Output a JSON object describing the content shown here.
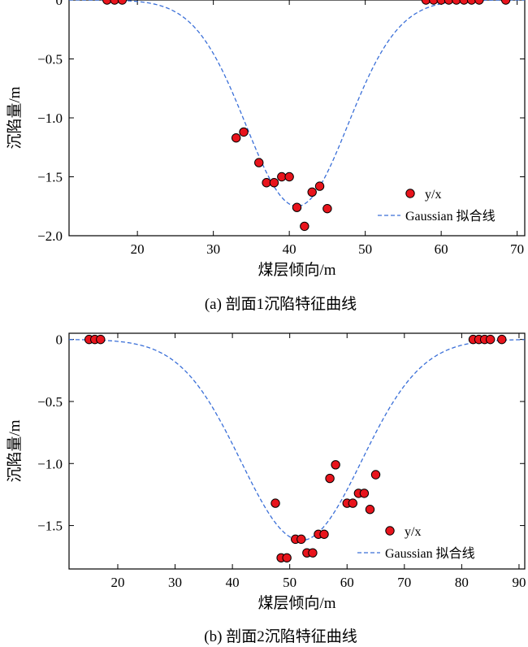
{
  "chart_data": [
    {
      "type": "scatter",
      "caption": "(a) 剖面1沉陷特征曲线",
      "xlabel": "煤层倾向/m",
      "ylabel": "沉陷量/m",
      "xlim": [
        11,
        71
      ],
      "ylim": [
        -2.0,
        0
      ],
      "xticks": [
        20,
        30,
        40,
        50,
        60,
        70
      ],
      "yticks": [
        0,
        -0.5,
        -1.0,
        -1.5,
        -2.0
      ],
      "ytick_labels": [
        "0",
        "−0.5",
        "−1.0",
        "−1.5",
        "−2.0"
      ],
      "legend_position": "bottom-right",
      "colors": {
        "points": "#e8141c",
        "fit": "#3a6fd8"
      },
      "series": [
        {
          "name": "y/x",
          "kind": "points",
          "x": [
            16,
            17,
            18,
            33,
            34,
            36,
            37,
            38,
            39,
            40,
            41,
            42,
            43,
            44,
            45,
            58,
            59,
            60,
            61,
            62,
            63,
            64,
            65,
            68.5
          ],
          "y": [
            0,
            0,
            0,
            -1.17,
            -1.12,
            -1.38,
            -1.55,
            -1.55,
            -1.5,
            -1.5,
            -1.76,
            -1.92,
            -1.63,
            -1.58,
            -1.77,
            0,
            0,
            0,
            0,
            0,
            0,
            0,
            0,
            0
          ]
        },
        {
          "name": "Gaussian 拟合线",
          "kind": "fit",
          "model": {
            "a": -1.75,
            "mu": 41.0,
            "sigma": 6.7
          }
        }
      ]
    },
    {
      "type": "scatter",
      "caption": "(b) 剖面2沉陷特征曲线",
      "xlabel": "煤层倾向/m",
      "ylabel": "沉陷量/m",
      "xlim": [
        11.5,
        91
      ],
      "ylim": [
        -1.85,
        0.05
      ],
      "xticks": [
        20,
        30,
        40,
        50,
        60,
        70,
        80,
        90
      ],
      "yticks": [
        0,
        -0.5,
        -1.0,
        -1.5
      ],
      "ytick_labels": [
        "0",
        "−0.5",
        "−1.0",
        "−1.5"
      ],
      "legend_position": "bottom-right",
      "colors": {
        "points": "#e8141c",
        "fit": "#3a6fd8"
      },
      "series": [
        {
          "name": "y/x",
          "kind": "points",
          "x": [
            15,
            16,
            17,
            47.5,
            48.5,
            49.5,
            51,
            52,
            53,
            54,
            55,
            56,
            57,
            58,
            60,
            61,
            62,
            63,
            64,
            65,
            82,
            83,
            84,
            85,
            87
          ],
          "y": [
            0,
            0,
            0,
            -1.32,
            -1.76,
            -1.76,
            -1.61,
            -1.61,
            -1.72,
            -1.72,
            -1.57,
            -1.57,
            -1.12,
            -1.01,
            -1.32,
            -1.32,
            -1.24,
            -1.24,
            -1.37,
            -1.09,
            0,
            0,
            0,
            0,
            0
          ]
        },
        {
          "name": "Gaussian 拟合线",
          "kind": "fit",
          "model": {
            "a": -1.62,
            "mu": 52.0,
            "sigma": 10.5
          }
        }
      ]
    }
  ]
}
